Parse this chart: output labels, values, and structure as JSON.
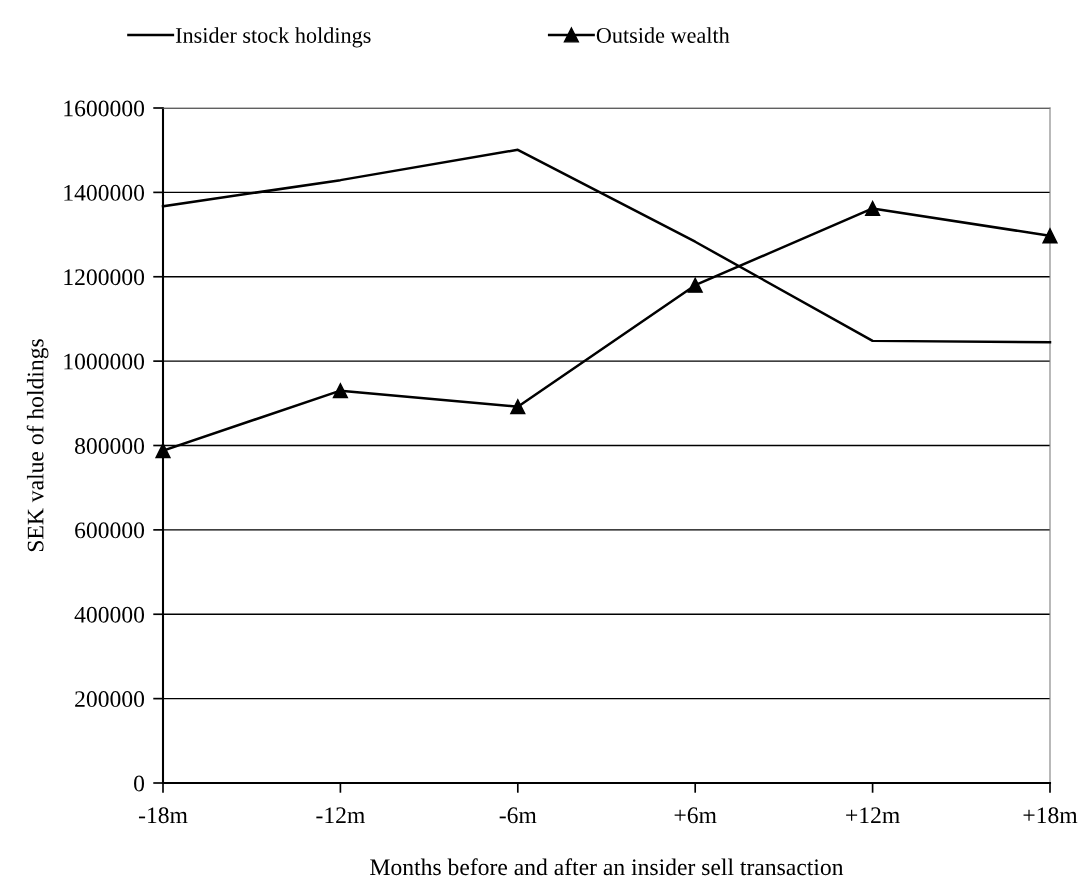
{
  "chart_data": {
    "type": "line",
    "xlabel": "Months before and after an insider sell transaction",
    "ylabel": "SEK value of holdings",
    "categories": [
      "-18m",
      "-12m",
      "-6m",
      "+6m",
      "+12m",
      "+18m"
    ],
    "series": [
      {
        "name": "Insider stock holdings",
        "color": "#000000",
        "marker": "none",
        "values": [
          1367000,
          1429000,
          1501000,
          1283000,
          1048000,
          1045000
        ]
      },
      {
        "name": "Outside wealth",
        "color": "#000000",
        "marker": "triangle",
        "values": [
          788000,
          930000,
          892000,
          1180000,
          1362000,
          1297000
        ]
      }
    ],
    "ylim": [
      0,
      1600000
    ],
    "yticks": [
      0,
      200000,
      400000,
      600000,
      800000,
      1000000,
      1200000,
      1400000,
      1600000
    ],
    "grid": "y",
    "legend": "top",
    "line_style": "solid"
  }
}
